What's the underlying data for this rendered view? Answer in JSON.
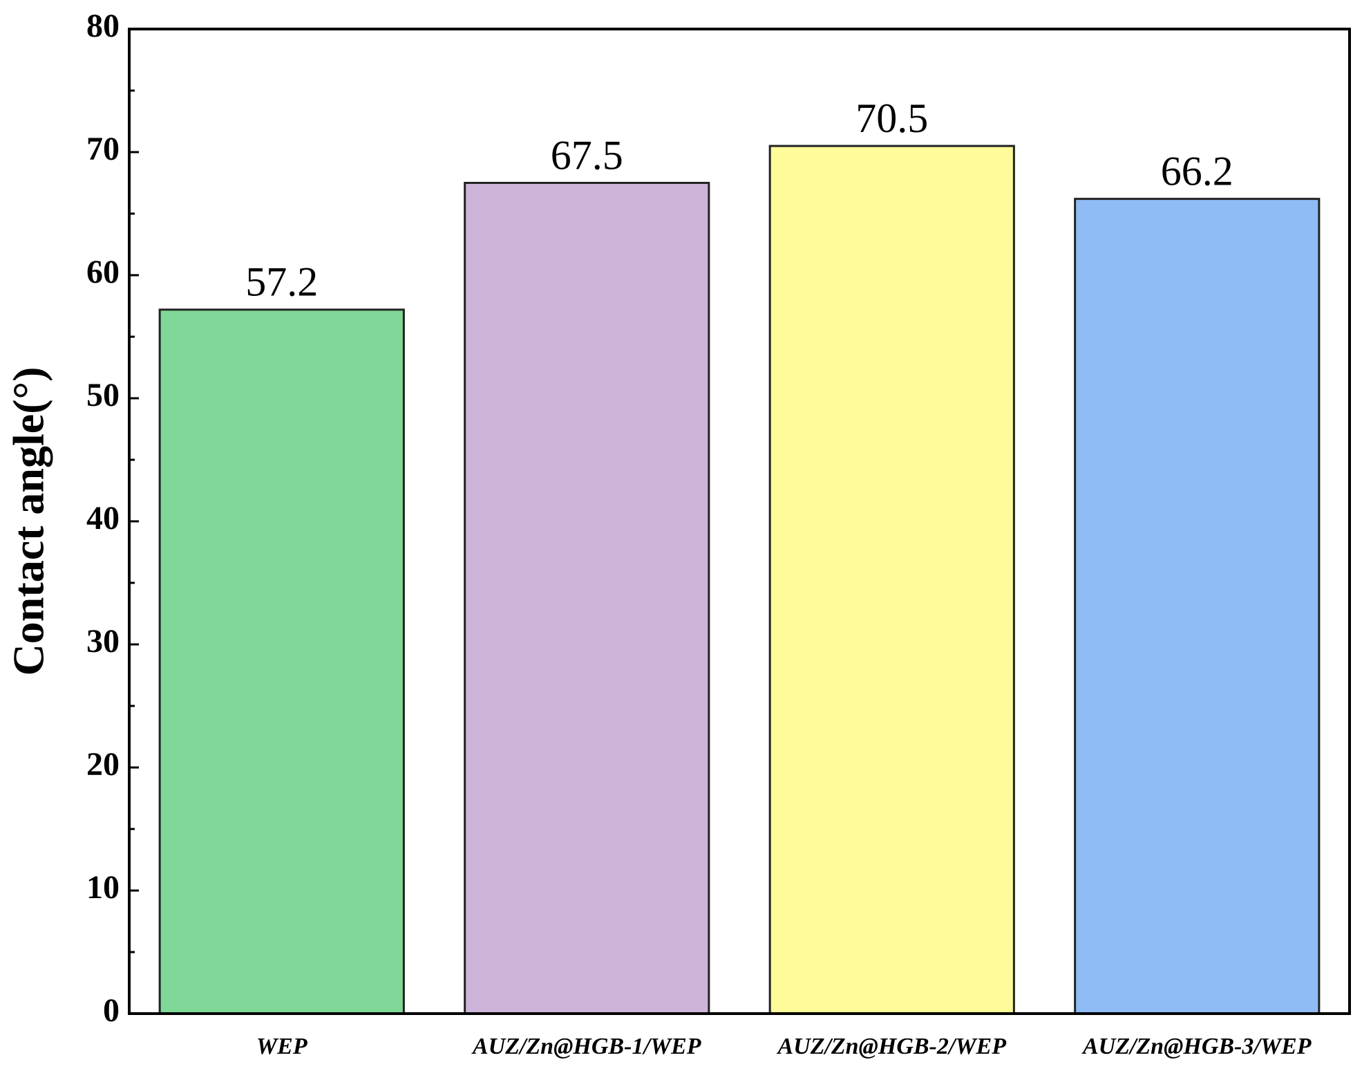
{
  "chart_data": {
    "type": "bar",
    "y_label": "Contact angle(°)",
    "categories": [
      "WEP",
      "AUZ/Zn@HGB-1/WEP",
      "AUZ/Zn@HGB-2/WEP",
      "AUZ/Zn@HGB-3/WEP"
    ],
    "values": [
      57.2,
      67.5,
      70.5,
      66.2
    ],
    "colors": [
      "#7fd898",
      "#cdb4d8",
      "#fdfb9a",
      "#8fbcf5"
    ],
    "ylim": [
      0,
      80
    ],
    "yticks": [
      0,
      10,
      20,
      30,
      40,
      50,
      60,
      70,
      80
    ],
    "minor_yticks": [
      5,
      15,
      25,
      35,
      45,
      55,
      65,
      75
    ],
    "grid": false
  }
}
